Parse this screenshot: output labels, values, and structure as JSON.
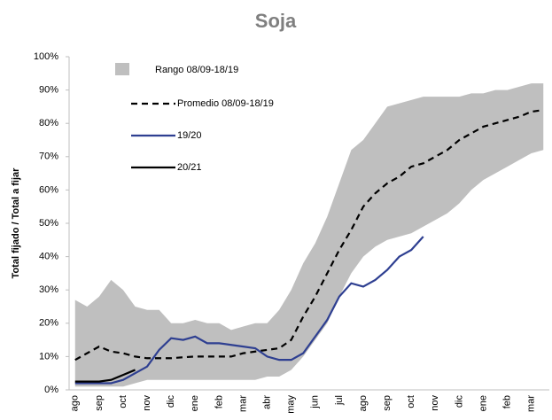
{
  "chart_data": {
    "type": "line",
    "title": "Soja",
    "y_label": "Total fijado / Total a fijar",
    "categories": [
      "ago",
      null,
      "sep",
      null,
      "oct",
      null,
      "nov",
      null,
      "dic",
      null,
      "ene",
      null,
      "feb",
      null,
      "mar",
      null,
      "abr",
      null,
      "may",
      null,
      "jun",
      null,
      "jul",
      null,
      "ago",
      null,
      "sep",
      null,
      "oct",
      null,
      "nov",
      null,
      "dic",
      null,
      "ene",
      null,
      "feb",
      null,
      "mar",
      null
    ],
    "ylim": [
      0,
      100
    ],
    "yticks": [
      {
        "value": 0,
        "label": "0%"
      },
      {
        "value": 10,
        "label": "10%"
      },
      {
        "value": 20,
        "label": "20%"
      },
      {
        "value": 30,
        "label": "30%"
      },
      {
        "value": 40,
        "label": "40%"
      },
      {
        "value": 50,
        "label": "50%"
      },
      {
        "value": 60,
        "label": "60%"
      },
      {
        "value": 70,
        "label": "70%"
      },
      {
        "value": 80,
        "label": "80%"
      },
      {
        "value": 90,
        "label": "90%"
      },
      {
        "value": 100,
        "label": "100%"
      }
    ],
    "grid": false,
    "range": {
      "name": "Rango 08/09-18/19",
      "color": "#bfbfbf",
      "upper": [
        27,
        25,
        28,
        33,
        30,
        25,
        24,
        24,
        20,
        20,
        21,
        20,
        20,
        18,
        19,
        20,
        20,
        24,
        30,
        38,
        44,
        52,
        62,
        72,
        75,
        80,
        85,
        86,
        87,
        88,
        88,
        88,
        88,
        89,
        89,
        90,
        90,
        91,
        92,
        92
      ],
      "lower": [
        1,
        1,
        1,
        1,
        1,
        2,
        3,
        3,
        3,
        3,
        3,
        3,
        3,
        3,
        3,
        3,
        4,
        4,
        6,
        10,
        15,
        20,
        28,
        35,
        40,
        43,
        45,
        46,
        47,
        49,
        51,
        53,
        56,
        60,
        63,
        65,
        67,
        69,
        71,
        72
      ]
    },
    "series": [
      {
        "name": "Promedio 08/09-18/19",
        "color": "#000000",
        "dashed": true,
        "values": [
          9,
          11,
          13,
          11.5,
          11,
          10,
          9.5,
          9.5,
          9.5,
          9.8,
          10,
          10,
          10,
          10,
          11,
          11.5,
          12,
          12.5,
          15,
          22,
          28,
          35,
          42,
          48,
          55,
          59,
          62,
          64,
          67,
          68,
          70,
          72,
          75,
          77,
          79,
          80,
          81,
          82,
          83.5,
          84
        ]
      },
      {
        "name": "19/20",
        "color": "#2e3f91",
        "dashed": false,
        "values": [
          2,
          2,
          2,
          2,
          3,
          5,
          7,
          12,
          15.5,
          15,
          16,
          14,
          14,
          13.5,
          13,
          12.5,
          10,
          9,
          9,
          11,
          16,
          21,
          28,
          32,
          31,
          33,
          36,
          40,
          42,
          46,
          null,
          null,
          null,
          null,
          null,
          null,
          null,
          null,
          null,
          null
        ]
      },
      {
        "name": "20/21",
        "color": "#000000",
        "dashed": false,
        "values": [
          2.5,
          2.5,
          2.5,
          3,
          4.5,
          6,
          null,
          null,
          null,
          null,
          null,
          null,
          null,
          null,
          null,
          null,
          null,
          null,
          null,
          null,
          null,
          null,
          null,
          null,
          null,
          null,
          null,
          null,
          null,
          null,
          null,
          null,
          null,
          null,
          null,
          null,
          null,
          null,
          null,
          null
        ]
      }
    ]
  }
}
